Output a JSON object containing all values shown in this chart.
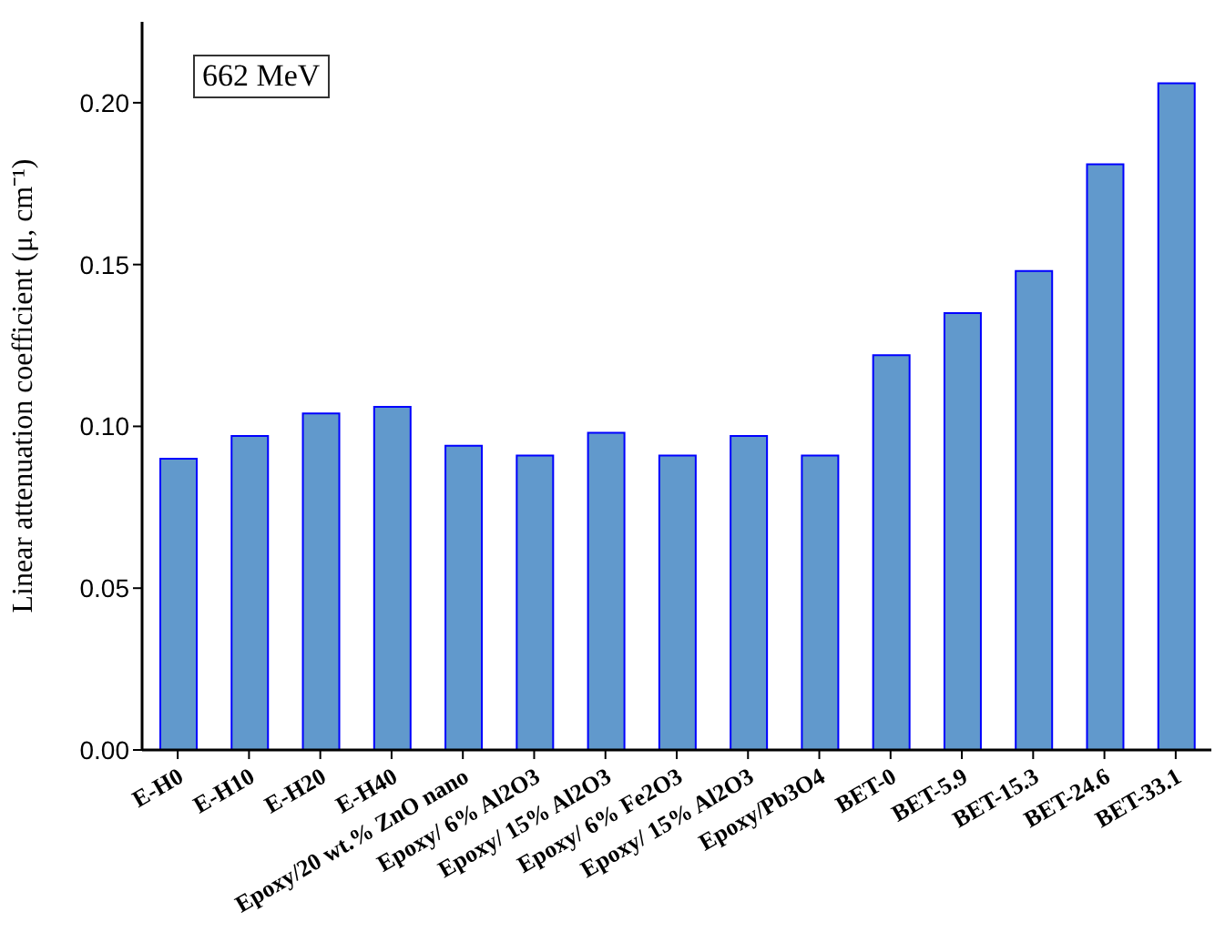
{
  "chart_data": {
    "type": "bar",
    "ylabel": "Linear attenuation coefficient (μ, cm⁻¹)",
    "annotations": [
      "662 MeV"
    ],
    "categories": [
      "E-H0",
      "E-H10",
      "E-H20",
      "E-H40",
      "Epoxy/20 wt.% ZnO nano",
      "Epoxy/ 6% Al2O3",
      "Epoxy/ 15% Al2O3",
      "Epoxy/ 6% Fe2O3",
      "Epoxy/ 15% Al2O3",
      "Epoxy/Pb3O4",
      "BET-0",
      "BET-5.9",
      "BET-15.3",
      "BET-24.6",
      "BET-33.1"
    ],
    "values": [
      0.09,
      0.097,
      0.104,
      0.106,
      0.094,
      0.091,
      0.098,
      0.091,
      0.097,
      0.091,
      0.122,
      0.135,
      0.148,
      0.181,
      0.206
    ],
    "color": "#6199cc",
    "ylim": [
      0,
      0.225
    ],
    "yticks": [
      {
        "value": 0,
        "label": "0.00"
      },
      {
        "value": 0.05,
        "label": "0.05"
      },
      {
        "value": 0.1,
        "label": "0.10"
      },
      {
        "value": 0.15,
        "label": "0.15"
      },
      {
        "value": 0.2,
        "label": "0.20"
      }
    ],
    "grid": false,
    "legend": false
  }
}
